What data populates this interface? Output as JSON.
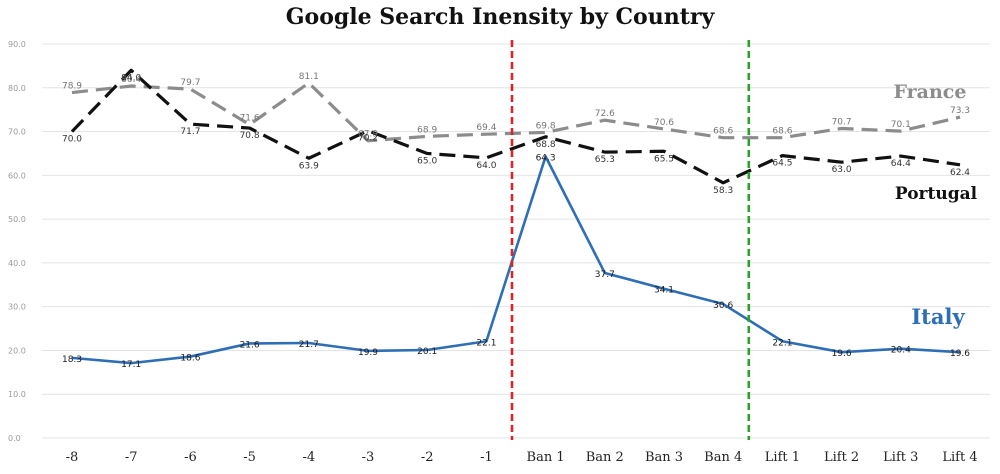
{
  "chart_data": {
    "type": "line",
    "title": "Google Search Inensity by Country",
    "xlabel": "",
    "ylabel": "",
    "ylim": [
      0,
      90
    ],
    "yticks": [
      "0.0",
      "10.0",
      "20.0",
      "30.0",
      "40.0",
      "50.0",
      "60.0",
      "70.0",
      "80.0",
      "90.0"
    ],
    "grid": true,
    "categories": [
      "-8",
      "-7",
      "-6",
      "-5",
      "-4",
      "-3",
      "-2",
      "-1",
      "Ban 1",
      "Ban 2",
      "Ban 3",
      "Ban 4",
      "Lift 1",
      "Lift 2",
      "Lift 3",
      "Lift 4"
    ],
    "series": [
      {
        "name": "France",
        "color": "#8c8c8c",
        "style": "dashed",
        "values": [
          78.9,
          80.4,
          79.7,
          71.6,
          81.1,
          67.9,
          68.9,
          69.4,
          69.8,
          72.6,
          70.6,
          68.6,
          68.6,
          70.7,
          70.1,
          73.3
        ],
        "labels": [
          "78.9",
          "80.4",
          "79.7",
          "71.6",
          "81.1",
          "67.9",
          "68.9",
          "69.4",
          "69.8",
          "72.6",
          "70.6",
          "68.6",
          "68.6",
          "70.7",
          "70.1",
          "73.3"
        ]
      },
      {
        "name": "Portugal",
        "color": "#111111",
        "style": "dashed",
        "values": [
          70.0,
          84.0,
          71.7,
          70.8,
          63.9,
          70.2,
          65.0,
          64.0,
          68.8,
          65.3,
          65.5,
          58.3,
          64.5,
          63.0,
          64.4,
          62.4
        ],
        "labels": [
          "70.0",
          "84.0",
          "71.7",
          "70.8",
          "63.9",
          "70.2",
          "65.0",
          "64.0",
          "68.8",
          "65.3",
          "65.5",
          "58.3",
          "64.5",
          "63.0",
          "64.4",
          "62.4"
        ]
      },
      {
        "name": "Italy",
        "color": "#2e6eb5",
        "style": "solid",
        "values": [
          18.3,
          17.1,
          18.6,
          21.6,
          21.7,
          19.9,
          20.1,
          22.1,
          64.3,
          37.7,
          34.1,
          30.6,
          22.1,
          19.6,
          20.4,
          19.6
        ],
        "labels": [
          "18.3",
          "17.1",
          "18.6",
          "21.6",
          "21.7",
          "19.9",
          "20.1",
          "22.1",
          "64.3",
          "37.7",
          "34.1",
          "30.6",
          "22.1",
          "19.6",
          "20.4",
          "19.6"
        ]
      }
    ],
    "vlines": [
      {
        "color": "#d62728",
        "style": "dashed",
        "between": [
          "-1",
          "Ban 1"
        ]
      },
      {
        "color": "#2ca02c",
        "style": "dashed",
        "between": [
          "Ban 4",
          "Lift 1"
        ]
      }
    ],
    "series_annotations": [
      "France",
      "Portugal",
      "Italy"
    ]
  }
}
